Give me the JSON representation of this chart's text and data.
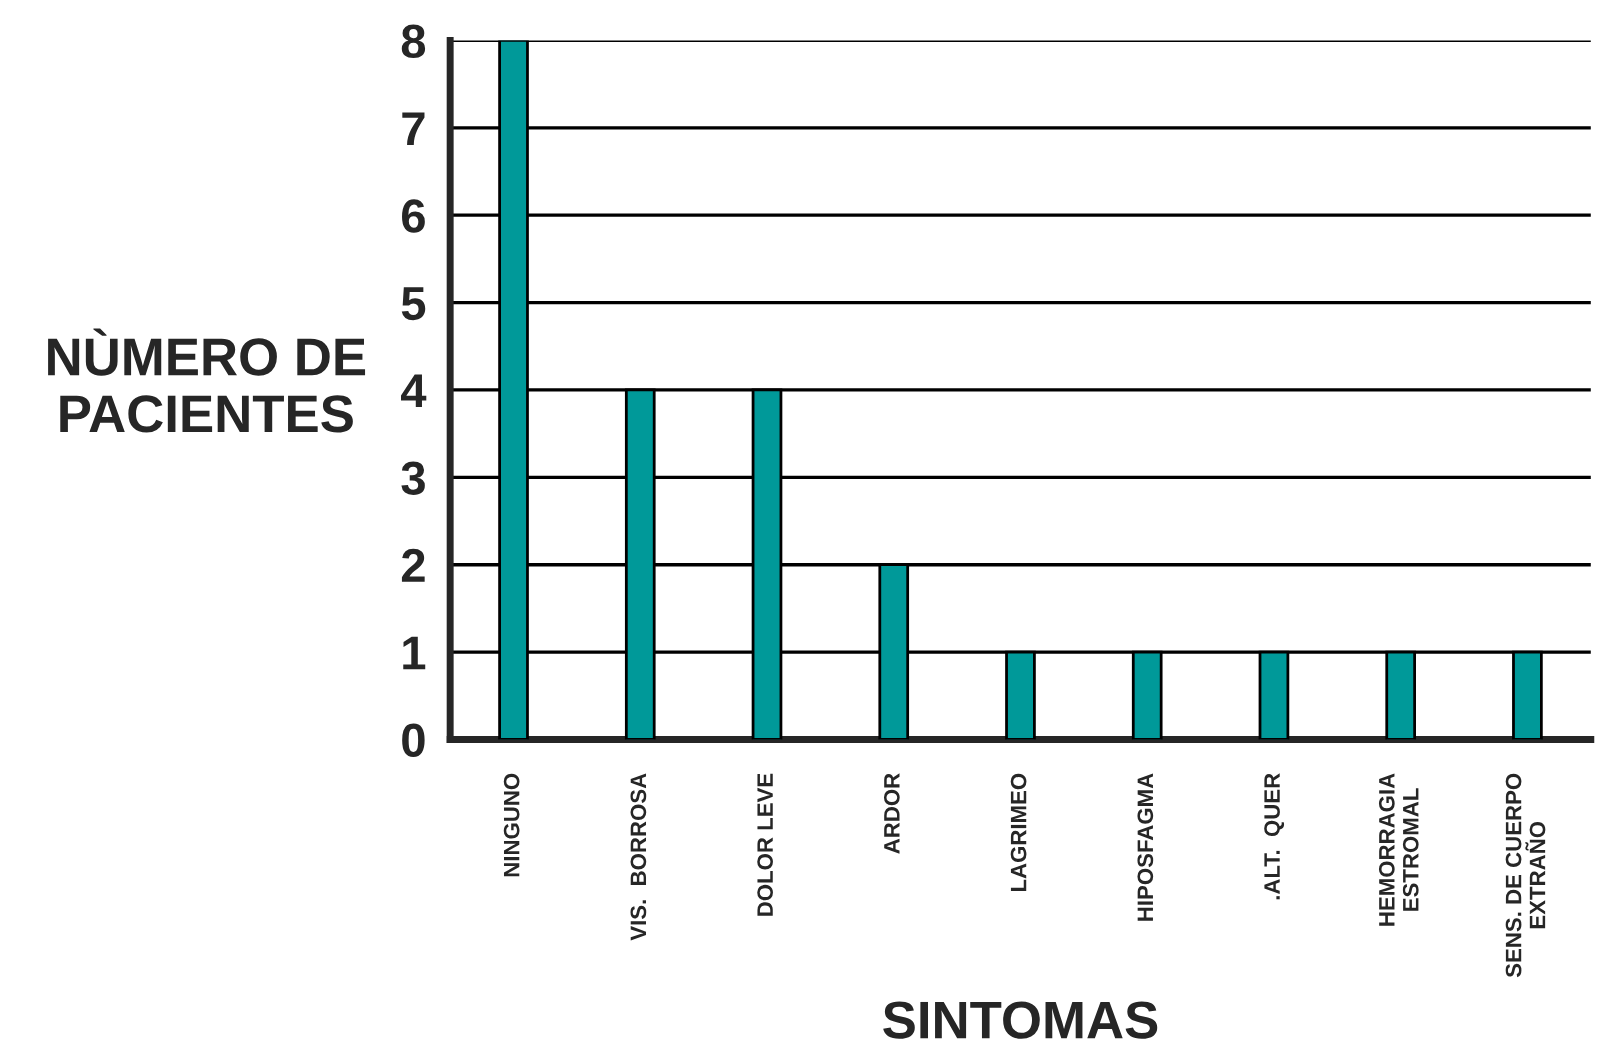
{
  "chart_data": {
    "type": "bar",
    "xlabel": "SINTOMAS",
    "ylabel": "NÙMERO DE\nPACIENTES",
    "categories": [
      "NINGUNO",
      "VIS.  BORROSA",
      "DOLOR LEVE",
      "ARDOR",
      "LAGRIMEO",
      "HIPOSFAGMA",
      ".ALT.  QUER",
      "HEMORRAGIA\nESTROMAL",
      "SENS. DE CUERPO\nEXTRAÑO"
    ],
    "values": [
      8,
      4,
      4,
      2,
      1,
      1,
      1,
      1,
      1
    ],
    "color": "#009999",
    "ylim": [
      0,
      8
    ],
    "yticks": [
      0,
      1,
      2,
      3,
      4,
      5,
      6,
      7,
      8
    ],
    "grid": "y"
  }
}
